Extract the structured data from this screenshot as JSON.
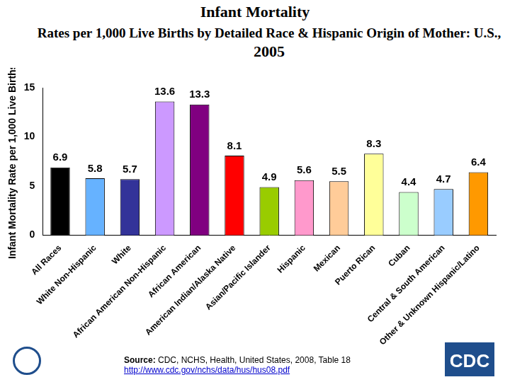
{
  "chart_data": {
    "type": "bar",
    "title": "Infant Mortality",
    "subtitle": [
      "Rates per 1,000 Live Births by Detailed Race & Hispanic Origin of Mother: U.S.,",
      "2005"
    ],
    "y_label": "Infant Mortality Rate per 1,000 Live Births",
    "categories": [
      "All Races",
      "White Non-Hispanic",
      "White",
      "African American Non-Hispanic",
      "African American",
      "American Indian/Alaska Native",
      "Asian/Pacific Islander",
      "Hispanic",
      "Mexican",
      "Puerto Rican",
      "Cuban",
      "Central & South American",
      "Other & Unknown Hispanic/Latino"
    ],
    "values": [
      6.9,
      5.8,
      5.7,
      13.6,
      13.3,
      8.1,
      4.9,
      5.6,
      5.5,
      8.3,
      4.4,
      4.7,
      6.4
    ],
    "colors": [
      "#000000",
      "#66b2ff",
      "#333399",
      "#cc99ff",
      "#800080",
      "#ff0000",
      "#99cc00",
      "#ff99cc",
      "#ffcc99",
      "#ffff99",
      "#ccffcc",
      "#99ccff",
      "#ff9900"
    ],
    "ylim": [
      0,
      15
    ],
    "yticks": [
      0,
      5,
      10,
      15
    ],
    "grid": false,
    "data_labels": true,
    "source_label": "Source:",
    "source": "CDC, NCHS, Health, United States, 2008, Table 18",
    "source_url": "http://www.cdc.gov/nchs/data/hus/hus08.pdf",
    "logo_text": "CDC"
  }
}
